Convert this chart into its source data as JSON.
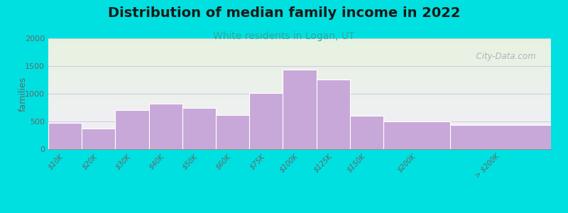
{
  "title": "Distribution of median family income in 2022",
  "subtitle": "White residents in Logan, UT",
  "categories": [
    "$10K",
    "$20K",
    "$30K",
    "$40K",
    "$50K",
    "$60K",
    "$75K",
    "$100K",
    "$125K",
    "$150K",
    "$200K",
    "> $200K"
  ],
  "values": [
    470,
    370,
    700,
    820,
    750,
    620,
    1010,
    1430,
    1260,
    600,
    500,
    430
  ],
  "bar_widths": [
    1,
    1,
    1,
    1,
    1,
    1,
    1,
    1,
    1,
    1,
    2,
    3
  ],
  "bar_color": "#c8a8d8",
  "bar_edge_color": "#ffffff",
  "background_outer": "#00e0e0",
  "plot_bg_top_color": "#e6f2e0",
  "plot_bg_bottom_color": "#f2eef8",
  "ylabel": "families",
  "ylim": [
    0,
    2000
  ],
  "yticks": [
    0,
    500,
    1000,
    1500,
    2000
  ],
  "title_fontsize": 14,
  "subtitle_fontsize": 10,
  "subtitle_color": "#30a8a0",
  "watermark": "  City-Data.com",
  "watermark_color": "#a0acac",
  "grid_color": "#d0c8e0",
  "tick_color": "#606868",
  "axis_label_color": "#606868"
}
